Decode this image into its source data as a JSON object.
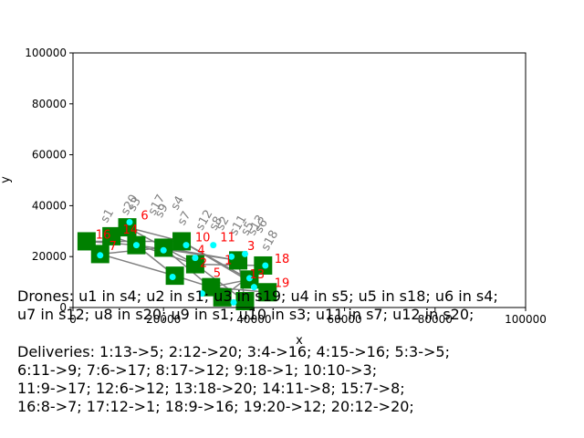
{
  "chart_data": {
    "type": "scatter",
    "xlabel": "x",
    "ylabel": "y",
    "xlim": [
      0,
      100000
    ],
    "ylim": [
      0,
      100000
    ],
    "xticks": [
      "0",
      "20000",
      "40000",
      "60000",
      "80000",
      "100000"
    ],
    "yticks": [
      "0",
      "20000",
      "40000",
      "60000",
      "80000",
      "100000"
    ],
    "grid": false,
    "stations": [
      {
        "x": 3000,
        "y": 26000
      },
      {
        "x": 6000,
        "y": 21000
      },
      {
        "x": 8500,
        "y": 28000
      },
      {
        "x": 12000,
        "y": 31500
      },
      {
        "x": 14000,
        "y": 24500
      },
      {
        "x": 20000,
        "y": 23500
      },
      {
        "x": 22500,
        "y": 12500
      },
      {
        "x": 24000,
        "y": 26000
      },
      {
        "x": 27000,
        "y": 17000
      },
      {
        "x": 30500,
        "y": 8000
      },
      {
        "x": 33000,
        "y": 4000
      },
      {
        "x": 36500,
        "y": 18500
      },
      {
        "x": 39000,
        "y": 11000
      },
      {
        "x": 42000,
        "y": 16500
      },
      {
        "x": 38000,
        "y": 2500
      },
      {
        "x": 43000,
        "y": 6000
      }
    ],
    "drone_points": [
      {
        "x": 6000,
        "y": 20500
      },
      {
        "x": 12500,
        "y": 33500
      },
      {
        "x": 14000,
        "y": 24500
      },
      {
        "x": 20000,
        "y": 22500
      },
      {
        "x": 22000,
        "y": 12000
      },
      {
        "x": 25000,
        "y": 24500
      },
      {
        "x": 27000,
        "y": 19500
      },
      {
        "x": 31000,
        "y": 24500
      },
      {
        "x": 35000,
        "y": 20000
      },
      {
        "x": 38000,
        "y": 21000
      },
      {
        "x": 39000,
        "y": 11500
      },
      {
        "x": 40000,
        "y": 8000
      },
      {
        "x": 42500,
        "y": 16500
      },
      {
        "x": 28500,
        "y": 5500
      },
      {
        "x": 35500,
        "y": 2000
      }
    ],
    "customer_labels": [
      {
        "text": "16",
        "x": 5000,
        "y": 27000
      },
      {
        "text": "7",
        "x": 8000,
        "y": 22500
      },
      {
        "text": "14",
        "x": 11000,
        "y": 29000
      },
      {
        "text": "6",
        "x": 15000,
        "y": 34500
      },
      {
        "text": "10",
        "x": 27000,
        "y": 26000
      },
      {
        "text": "11",
        "x": 32500,
        "y": 26000
      },
      {
        "text": "4",
        "x": 27500,
        "y": 21000
      },
      {
        "text": "2",
        "x": 28000,
        "y": 16000
      },
      {
        "text": "5",
        "x": 31000,
        "y": 12000
      },
      {
        "text": "1",
        "x": 33500,
        "y": 17000
      },
      {
        "text": "3",
        "x": 38500,
        "y": 22500
      },
      {
        "text": "13",
        "x": 39000,
        "y": 11500
      },
      {
        "text": "18",
        "x": 44500,
        "y": 17500
      },
      {
        "text": "19",
        "x": 44500,
        "y": 8000
      }
    ],
    "station_labels": [
      {
        "text": "s1",
        "x": 7500,
        "y": 33000
      },
      {
        "text": "s20",
        "x": 12000,
        "y": 36000
      },
      {
        "text": "s3",
        "x": 13500,
        "y": 37500
      },
      {
        "text": "s17",
        "x": 18000,
        "y": 36000
      },
      {
        "text": "s9",
        "x": 19500,
        "y": 35000
      },
      {
        "text": "s4",
        "x": 23000,
        "y": 38000
      },
      {
        "text": "s7",
        "x": 24500,
        "y": 32000
      },
      {
        "text": "s12",
        "x": 28500,
        "y": 30000
      },
      {
        "text": "s8",
        "x": 31500,
        "y": 30000
      },
      {
        "text": "s2",
        "x": 33000,
        "y": 30000
      },
      {
        "text": "s11",
        "x": 36000,
        "y": 28000
      },
      {
        "text": "s5",
        "x": 38500,
        "y": 28000
      },
      {
        "text": "s13",
        "x": 40000,
        "y": 28000
      },
      {
        "text": "s6",
        "x": 41500,
        "y": 29000
      },
      {
        "text": "s18",
        "x": 43000,
        "y": 22000
      }
    ],
    "edges": [
      [
        3000,
        26000,
        14000,
        24500
      ],
      [
        6000,
        21000,
        20000,
        23500
      ],
      [
        14000,
        24500,
        22500,
        12500
      ],
      [
        22500,
        12500,
        30500,
        8000
      ],
      [
        30500,
        8000,
        43000,
        6000
      ],
      [
        20000,
        23500,
        36500,
        18500
      ],
      [
        24000,
        26000,
        39000,
        11000
      ],
      [
        27000,
        17000,
        42000,
        16500
      ],
      [
        12000,
        31500,
        24000,
        26000
      ],
      [
        8500,
        28000,
        27000,
        17000
      ],
      [
        33000,
        4000,
        42000,
        16500
      ],
      [
        36500,
        18500,
        38000,
        2500
      ],
      [
        6000,
        21000,
        22500,
        12500
      ],
      [
        20000,
        23500,
        33000,
        4000
      ],
      [
        24000,
        26000,
        43000,
        6000
      ],
      [
        14000,
        24500,
        36500,
        18500
      ],
      [
        27000,
        17000,
        38000,
        2500
      ],
      [
        30500,
        8000,
        39000,
        11000
      ],
      [
        3000,
        26000,
        24000,
        26000
      ],
      [
        12000,
        31500,
        27000,
        17000
      ]
    ]
  },
  "drones_text": [
    "Drones: u1 in s4; u2 in s1; u3 in s19; u4 in s5; u5 in s18; u6 in s4;",
    "u7 in s12; u8 in s20; u9 in s1; u10 in s3; u11 in s7; u12 in s20;"
  ],
  "deliveries_text": [
    "Deliveries: 1:13->5; 2:12->20; 3:4->16; 4:15->16; 5:3->5;",
    "6:11->9; 7:6->17; 8:17->12; 9:18->1; 10:10->3;",
    "11:9->17; 12:6->12; 13:18->20; 14:11->8; 15:7->8;",
    "16:8->7; 17:12->1; 18:9->16; 19:20->12; 20:12->20;"
  ],
  "colors": {
    "station": "#008000",
    "drone": "#00ffff",
    "edge": "#808080",
    "customer_label": "#ff0000",
    "station_label": "#808080",
    "axis": "#000000"
  }
}
